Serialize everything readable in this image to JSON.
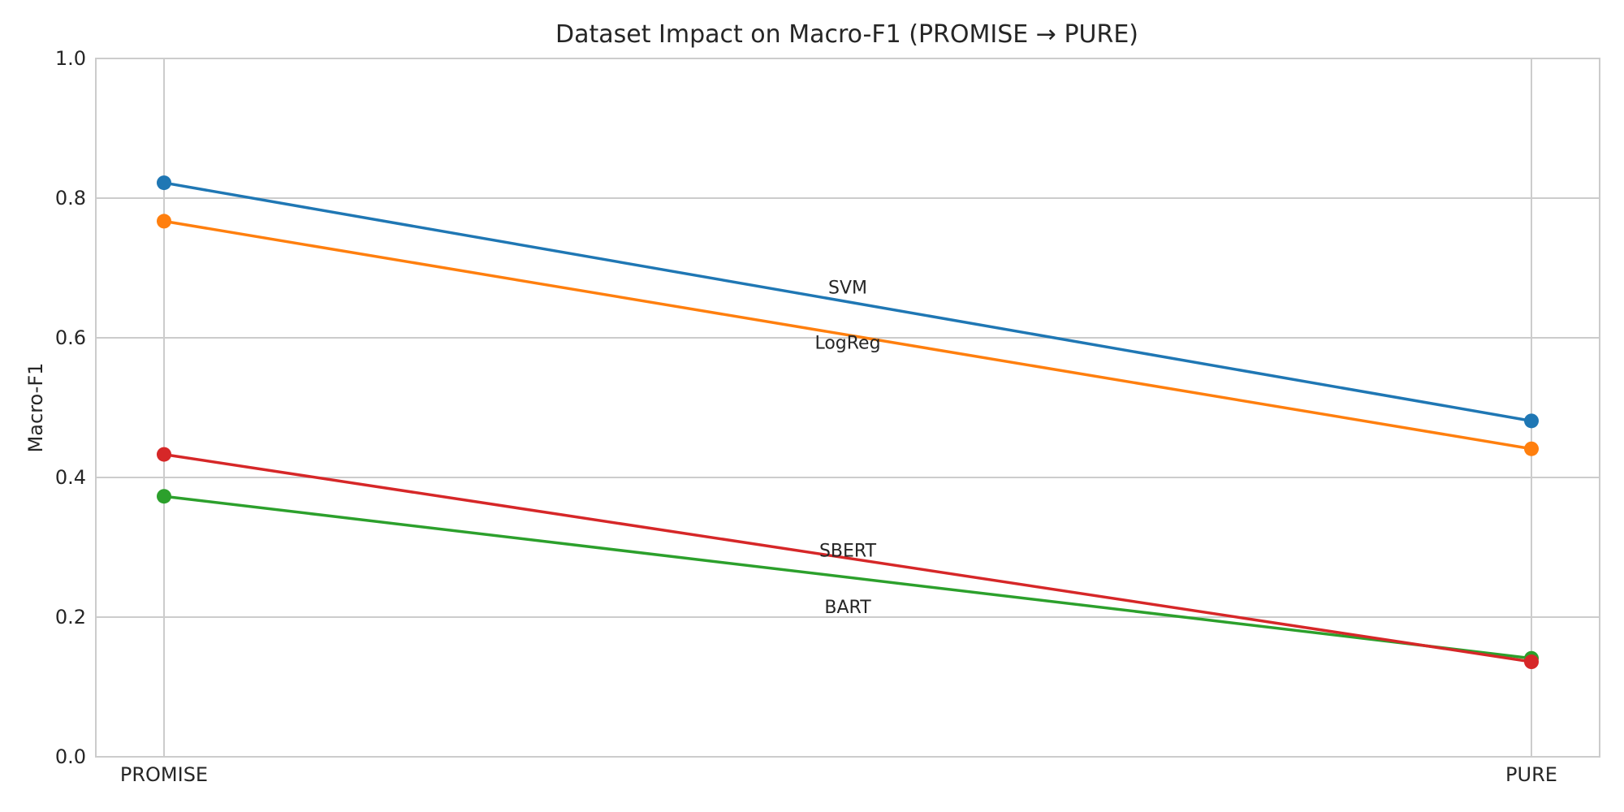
{
  "chart_data": {
    "type": "line",
    "title": "Dataset Impact on Macro-F1 (PROMISE → PURE)",
    "xlabel": "",
    "ylabel": "Macro-F1",
    "categories": [
      "PROMISE",
      "PURE"
    ],
    "ylim": [
      0.0,
      1.0
    ],
    "yticks": [
      "0.0",
      "0.2",
      "0.4",
      "0.6",
      "0.8",
      "1.0"
    ],
    "grid": true,
    "series": [
      {
        "name": "SVM",
        "values": [
          0.822,
          0.481
        ],
        "color": "#1f77b4"
      },
      {
        "name": "LogReg",
        "values": [
          0.767,
          0.441
        ],
        "color": "#ff7f0e"
      },
      {
        "name": "BART",
        "values": [
          0.373,
          0.141
        ],
        "color": "#2ca02c"
      },
      {
        "name": "SBERT",
        "values": [
          0.433,
          0.136
        ],
        "color": "#d62728"
      }
    ]
  }
}
